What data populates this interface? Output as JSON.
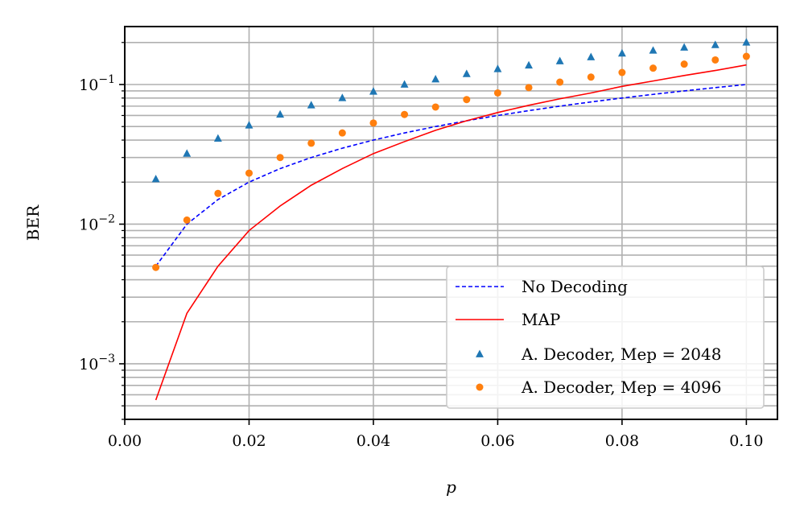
{
  "chart_data": {
    "type": "line",
    "xlabel": "p",
    "ylabel": "BER",
    "xlim": [
      0.0,
      0.105
    ],
    "ylim": [
      0.0004,
      0.26
    ],
    "yscale": "log",
    "grid": true,
    "legend_position": "lower-right",
    "x_ticks": [
      0.0,
      0.02,
      0.04,
      0.06,
      0.08,
      0.1
    ],
    "x_tick_labels": [
      "0.00",
      "0.02",
      "0.04",
      "0.06",
      "0.08",
      "0.10"
    ],
    "y_ticks": [
      {
        "value": 0.1,
        "base": "10",
        "exp": "−1"
      },
      {
        "value": 0.01,
        "base": "10",
        "exp": "−2"
      },
      {
        "value": 0.001,
        "base": "10",
        "exp": "−3"
      }
    ],
    "series": [
      {
        "name": "No Decoding",
        "kind": "line",
        "style": "dashed",
        "color": "#0000ff",
        "x": [
          0.005,
          0.01,
          0.015,
          0.02,
          0.025,
          0.03,
          0.035,
          0.04,
          0.045,
          0.05,
          0.055,
          0.06,
          0.065,
          0.07,
          0.075,
          0.08,
          0.085,
          0.09,
          0.095,
          0.1
        ],
        "y": [
          0.005,
          0.01,
          0.015,
          0.02,
          0.025,
          0.03,
          0.035,
          0.04,
          0.045,
          0.05,
          0.055,
          0.06,
          0.065,
          0.07,
          0.075,
          0.08,
          0.085,
          0.09,
          0.095,
          0.1
        ]
      },
      {
        "name": "MAP",
        "kind": "line",
        "style": "solid",
        "color": "#ff0000",
        "x": [
          0.005,
          0.01,
          0.015,
          0.02,
          0.025,
          0.03,
          0.035,
          0.04,
          0.045,
          0.05,
          0.055,
          0.06,
          0.065,
          0.07,
          0.075,
          0.08,
          0.085,
          0.09,
          0.095,
          0.1
        ],
        "y": [
          0.00055,
          0.0023,
          0.005,
          0.009,
          0.0135,
          0.019,
          0.025,
          0.032,
          0.039,
          0.047,
          0.055,
          0.063,
          0.071,
          0.079,
          0.087,
          0.097,
          0.106,
          0.116,
          0.126,
          0.138
        ]
      },
      {
        "name": "A. Decoder, Mep = 2048",
        "kind": "scatter",
        "marker": "triangle",
        "color": "#1f77b4",
        "x": [
          0.005,
          0.01,
          0.015,
          0.02,
          0.025,
          0.03,
          0.035,
          0.04,
          0.045,
          0.05,
          0.055,
          0.06,
          0.065,
          0.07,
          0.075,
          0.08,
          0.085,
          0.09,
          0.095,
          0.1
        ],
        "y": [
          0.021,
          0.032,
          0.041,
          0.051,
          0.061,
          0.071,
          0.08,
          0.089,
          0.1,
          0.109,
          0.119,
          0.129,
          0.137,
          0.147,
          0.157,
          0.167,
          0.175,
          0.184,
          0.192,
          0.2
        ]
      },
      {
        "name": "A. Decoder, Mep = 4096",
        "kind": "scatter",
        "marker": "circle",
        "color": "#ff7f0e",
        "x": [
          0.005,
          0.01,
          0.015,
          0.02,
          0.025,
          0.03,
          0.035,
          0.04,
          0.045,
          0.05,
          0.055,
          0.06,
          0.065,
          0.07,
          0.075,
          0.08,
          0.085,
          0.09,
          0.095,
          0.1
        ],
        "y": [
          0.0049,
          0.0107,
          0.0166,
          0.0232,
          0.03,
          0.038,
          0.045,
          0.053,
          0.061,
          0.069,
          0.078,
          0.087,
          0.095,
          0.104,
          0.113,
          0.122,
          0.131,
          0.14,
          0.15,
          0.159
        ]
      }
    ]
  }
}
